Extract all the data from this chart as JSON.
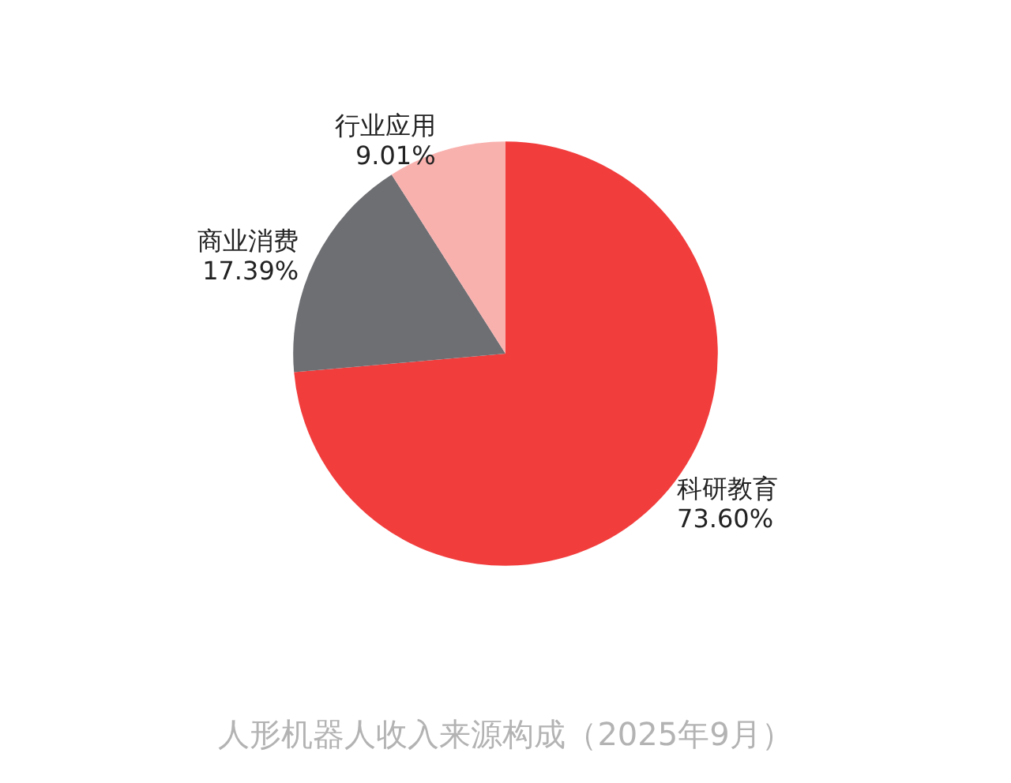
{
  "chart_data": {
    "type": "pie",
    "title": "人形机器人收入来源构成（2025年9月）",
    "categories": [
      "科研教育",
      "商业消费",
      "行业应用"
    ],
    "values": [
      73.6,
      17.39,
      9.01
    ],
    "value_labels": [
      "73.60%",
      "17.39%",
      "9.01%"
    ],
    "colors": [
      "#f23d3d",
      "#6e6f73",
      "#f9b1ae"
    ],
    "legend": false
  }
}
